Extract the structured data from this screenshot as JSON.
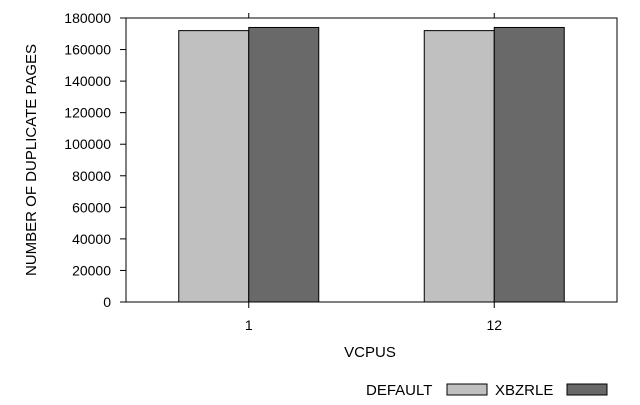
{
  "chart_data": {
    "type": "bar",
    "title": "",
    "xlabel": "VCPUS",
    "ylabel": "NUMBER OF DUPLICATE PAGES",
    "categories": [
      "1",
      "12"
    ],
    "series": [
      {
        "name": "DEFAULT",
        "values": [
          172000,
          172000
        ],
        "color": "#c0c0c0"
      },
      {
        "name": "XBZRLE",
        "values": [
          174000,
          174000
        ],
        "color": "#696969"
      }
    ],
    "ylim": [
      0,
      180000
    ],
    "yticks": [
      0,
      20000,
      40000,
      60000,
      80000,
      100000,
      120000,
      140000,
      160000,
      180000
    ],
    "grid": false,
    "legend_position": "bottom-right"
  }
}
